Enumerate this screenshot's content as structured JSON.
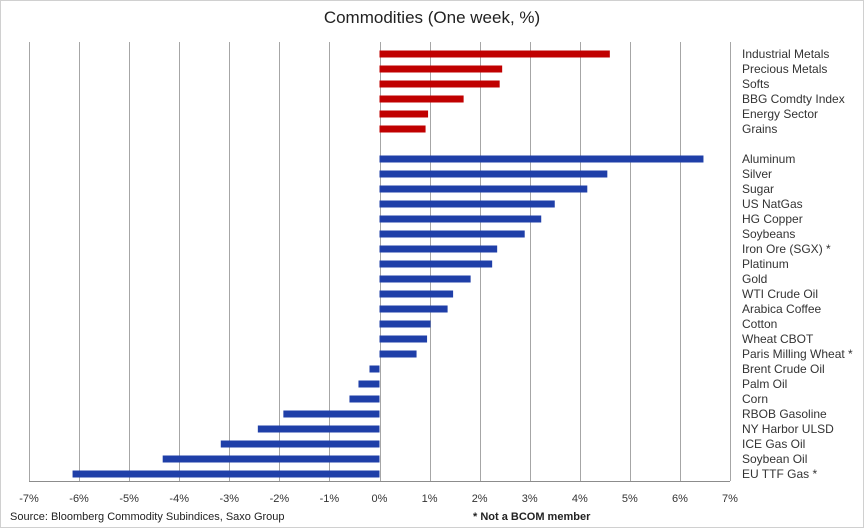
{
  "chart_data": {
    "type": "bar",
    "orientation": "horizontal",
    "title": "Commodities (One week, %)",
    "xlim": [
      -7,
      7
    ],
    "x_ticks": [
      "-7%",
      "-6%",
      "-5%",
      "-4%",
      "-3%",
      "-2%",
      "-1%",
      "0%",
      "1%",
      "2%",
      "3%",
      "4%",
      "5%",
      "6%",
      "7%"
    ],
    "grid": "vertical",
    "groups": [
      {
        "color": "#c00000",
        "categories": [
          "Industrial Metals",
          "Precious Metals",
          "Softs",
          "BBG Comdty Index",
          "Energy Sector",
          "Grains"
        ],
        "values": [
          4.6,
          2.45,
          2.4,
          1.68,
          0.97,
          0.92
        ]
      },
      {
        "color": "#1f3fa8",
        "categories": [
          "Aluminum",
          "Silver",
          "Sugar",
          "US NatGas",
          "HG Copper",
          "Soybeans",
          "Iron Ore (SGX) *",
          "Platinum",
          "Gold",
          "WTI Crude Oil",
          "Arabica Coffee",
          "Cotton",
          "Wheat CBOT",
          "Paris Milling Wheat *",
          "Brent Crude Oil",
          "Palm Oil",
          "Corn",
          "RBOB Gasoline",
          "NY Harbor ULSD",
          "ICE Gas Oil",
          "Soybean Oil",
          "EU TTF Gas *"
        ],
        "values": [
          6.47,
          4.55,
          4.15,
          3.5,
          3.23,
          2.9,
          2.35,
          2.25,
          1.82,
          1.47,
          1.36,
          1.02,
          0.95,
          0.74,
          -0.2,
          -0.42,
          -0.6,
          -1.92,
          -2.43,
          -3.17,
          -4.33,
          -6.13
        ]
      }
    ]
  },
  "footer": {
    "source": "Source: Bloomberg Commodity Subindices, Saxo Group",
    "note": "* Not a BCOM member"
  }
}
